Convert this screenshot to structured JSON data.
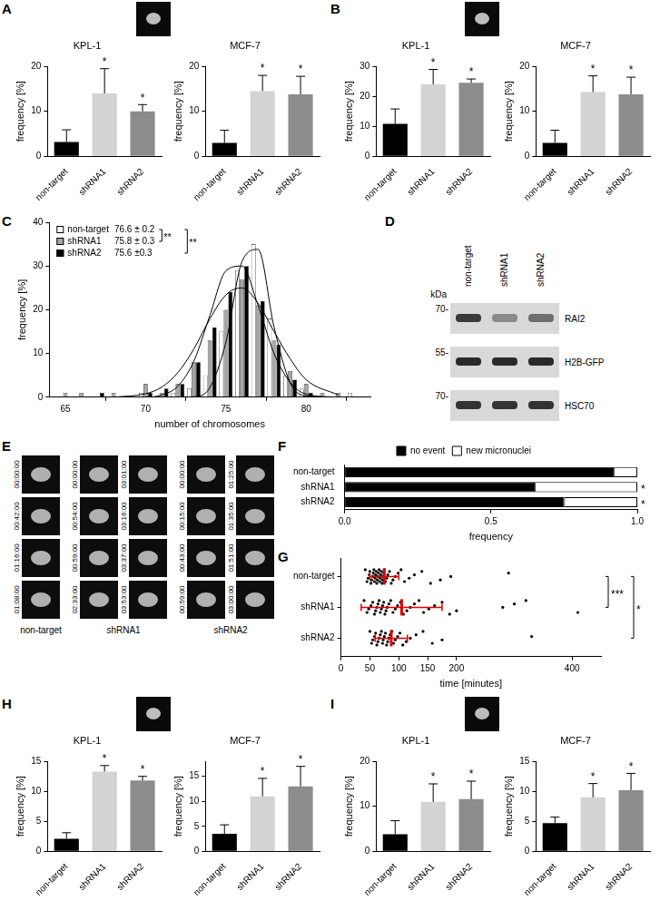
{
  "chart_data": [
    {
      "panel": "A",
      "type": "bar",
      "title": "KPL-1",
      "y_label": "frequency [%]",
      "categories": [
        "non-target",
        "shRNA1",
        "shRNA2"
      ],
      "values": [
        3.2,
        14,
        10
      ],
      "errors": [
        2.7,
        5.5,
        1.5
      ],
      "annotations": [
        null,
        "*",
        "*"
      ],
      "colors": [
        "#000000",
        "#d3d3d3",
        "#8c8c8c"
      ],
      "ylim": [
        0,
        20
      ],
      "yticks": [
        0,
        10,
        20
      ]
    },
    {
      "panel": "A",
      "type": "bar",
      "title": "MCF-7",
      "y_label": "frequency [%]",
      "categories": [
        "non-target",
        "shRNA1",
        "shRNA2"
      ],
      "values": [
        3,
        14.5,
        13.8
      ],
      "errors": [
        2.8,
        3.5,
        4
      ],
      "annotations": [
        null,
        "*",
        "*"
      ],
      "colors": [
        "#000000",
        "#d3d3d3",
        "#8c8c8c"
      ],
      "ylim": [
        0,
        20
      ],
      "yticks": [
        0,
        10,
        20
      ]
    },
    {
      "panel": "B",
      "type": "bar",
      "title": "KPL-1",
      "y_label": "frequency [%]",
      "categories": [
        "non-target",
        "shRNA1",
        "shRNA2"
      ],
      "values": [
        10.8,
        24,
        24.5
      ],
      "errors": [
        5,
        5,
        1.3
      ],
      "annotations": [
        null,
        "*",
        "*"
      ],
      "colors": [
        "#000000",
        "#d3d3d3",
        "#8c8c8c"
      ],
      "ylim": [
        0,
        30
      ],
      "yticks": [
        0,
        10,
        20,
        30
      ]
    },
    {
      "panel": "B",
      "type": "bar",
      "title": "MCF-7",
      "y_label": "frequency [%]",
      "categories": [
        "non-target",
        "shRNA1",
        "shRNA2"
      ],
      "values": [
        3,
        14.3,
        13.8
      ],
      "errors": [
        2.8,
        3.6,
        3.8
      ],
      "annotations": [
        null,
        "*",
        "*"
      ],
      "colors": [
        "#000000",
        "#d3d3d3",
        "#8c8c8c"
      ],
      "ylim": [
        0,
        20
      ],
      "yticks": [
        0,
        10,
        20
      ]
    },
    {
      "panel": "C",
      "type": "bar",
      "x_label": "number of chromosomes",
      "y_label": "frequency [%]",
      "x": [
        65,
        66,
        67,
        68,
        69,
        70,
        71,
        72,
        73,
        74,
        75,
        76,
        77,
        78,
        79,
        80,
        81,
        82,
        83
      ],
      "fit_x": [
        68,
        70,
        71,
        72,
        73,
        74,
        75,
        76,
        77,
        78,
        79,
        80,
        82
      ],
      "series": [
        {
          "name": "non-target",
          "summary": "76.6 ± 0.2",
          "color": "#ffffff",
          "values": [
            0,
            0,
            0,
            0,
            0,
            1,
            0,
            1,
            2,
            5,
            15,
            29,
            35,
            18,
            5,
            2,
            0,
            0,
            1
          ],
          "fit_values": [
            0,
            0,
            0,
            0,
            0.1,
            2.2,
            12.6,
            31,
            33.8,
            16,
            3.3,
            0.3,
            0
          ]
        },
        {
          "name": "shRNA1",
          "summary": "75.8 ± 0.3",
          "color": "#a6a6a6",
          "values": [
            1,
            1,
            0,
            1,
            0,
            3,
            1,
            3,
            8,
            13,
            20,
            27,
            21,
            13,
            6,
            3,
            1,
            1,
            0
          ],
          "fit_values": [
            0,
            0.8,
            2.3,
            5.6,
            11,
            17.9,
            23.4,
            25,
            21.5,
            15,
            8.8,
            4,
            0.5
          ]
        },
        {
          "name": "shRNA2",
          "summary": "75.6 ±0.3",
          "color": "#000000",
          "values": [
            0,
            0,
            1,
            0,
            0,
            1,
            2,
            3,
            8,
            16,
            24,
            30,
            22,
            12,
            4,
            1,
            0,
            0,
            0
          ],
          "fit_values": [
            0,
            0,
            0.5,
            2.5,
            8.2,
            18.7,
            28.9,
            30,
            21,
            10,
            3.4,
            0.7,
            0
          ]
        }
      ],
      "xlim": [
        64,
        84
      ],
      "xticks": [
        65,
        70,
        75,
        80
      ],
      "ylim": [
        0,
        40
      ],
      "yticks": [
        0,
        10,
        20,
        30,
        40
      ],
      "legend": "upper left",
      "annotations": [
        {
          "text": "**",
          "from": "non-target",
          "to": "shRNA1"
        },
        {
          "text": "**",
          "from": "non-target",
          "to": "shRNA2"
        }
      ]
    },
    {
      "panel": "F",
      "type": "bar",
      "orientation": "horizontal",
      "stacked": true,
      "categories": [
        "non-target",
        "shRNA1",
        "shRNA2"
      ],
      "series": [
        {
          "name": "no event",
          "color": "#000000",
          "values": [
            0.92,
            0.65,
            0.75
          ]
        },
        {
          "name": "new micronuclei",
          "color": "#ffffff",
          "values": [
            0.08,
            0.35,
            0.25
          ]
        }
      ],
      "xlim": [
        0,
        1
      ],
      "xticks": [
        {
          "value": 0,
          "label": "0.0"
        },
        0.5,
        {
          "value": 1,
          "label": "1.0"
        }
      ],
      "x_label": "frequency",
      "legend": "top",
      "annotations": [
        null,
        "*",
        "*"
      ]
    },
    {
      "panel": "G",
      "type": "scatter",
      "categories": [
        "non-target",
        "shRNA1",
        "shRNA2"
      ],
      "color": "#000000",
      "values": [
        [
          42,
          45,
          47,
          49,
          50,
          52,
          53,
          55,
          56,
          57,
          58,
          59,
          60,
          61,
          62,
          63,
          64,
          65,
          66,
          67,
          68,
          69,
          70,
          71,
          72,
          73,
          74,
          75,
          77,
          79,
          81,
          84,
          87,
          90,
          94,
          99,
          104,
          110,
          118,
          127,
          140,
          155,
          172,
          190,
          290
        ],
        [
          40,
          45,
          48,
          52,
          55,
          58,
          60,
          62,
          64,
          66,
          68,
          70,
          72,
          74,
          76,
          78,
          80,
          83,
          86,
          90,
          94,
          98,
          103,
          108,
          114,
          120,
          127,
          135,
          143,
          152,
          162,
          175,
          188,
          200,
          280,
          300,
          320,
          410
        ],
        [
          50,
          53,
          55,
          58,
          60,
          62,
          64,
          66,
          68,
          70,
          72,
          73,
          75,
          77,
          79,
          81,
          83,
          85,
          88,
          91,
          94,
          98,
          102,
          107,
          113,
          120,
          130,
          142,
          158,
          175,
          330
        ]
      ],
      "mean": [
        75,
        105,
        87
      ],
      "sd": [
        25,
        70,
        28
      ],
      "xlim": [
        0,
        450
      ],
      "xticks": [
        0,
        50,
        100,
        150,
        200,
        400
      ],
      "x_label": "time [minutes]",
      "annotations": [
        {
          "text": "***",
          "from": "non-target",
          "to": "shRNA1"
        },
        {
          "text": "*",
          "from": "non-target",
          "to": "shRNA2"
        }
      ]
    },
    {
      "panel": "H",
      "type": "bar",
      "title": "KPL-1",
      "y_label": "frequency [%]",
      "categories": [
        "non-target",
        "shRNA1",
        "shRNA2"
      ],
      "values": [
        2.1,
        13.3,
        11.8
      ],
      "errors": [
        1,
        1,
        0.7
      ],
      "annotations": [
        null,
        "*",
        "*"
      ],
      "colors": [
        "#000000",
        "#d3d3d3",
        "#8c8c8c"
      ],
      "ylim": [
        0,
        15
      ],
      "yticks": [
        0,
        5,
        10,
        15
      ]
    },
    {
      "panel": "H",
      "type": "bar",
      "title": "MCF-7",
      "y_label": "frequency [%]",
      "categories": [
        "non-target",
        "shRNA1",
        "shRNA2"
      ],
      "values": [
        3.5,
        11,
        13
      ],
      "errors": [
        1.8,
        3.6,
        4
      ],
      "annotations": [
        null,
        "*",
        "*"
      ],
      "colors": [
        "#000000",
        "#d3d3d3",
        "#8c8c8c"
      ],
      "ylim": [
        0,
        18
      ],
      "yticks": [
        0,
        5,
        10,
        15
      ]
    },
    {
      "panel": "I",
      "type": "bar",
      "title": "KPL-1",
      "y_label": "frequency [%]",
      "categories": [
        "non-target",
        "shRNA1",
        "shRNA2"
      ],
      "values": [
        3.8,
        11,
        11.6
      ],
      "errors": [
        3,
        4,
        4
      ],
      "annotations": [
        null,
        "*",
        "*"
      ],
      "colors": [
        "#000000",
        "#d3d3d3",
        "#8c8c8c"
      ],
      "ylim": [
        0,
        20
      ],
      "yticks": [
        0,
        10,
        20
      ]
    },
    {
      "panel": "I",
      "type": "bar",
      "title": "MCF-7",
      "y_label": "frequency [%]",
      "categories": [
        "non-target",
        "shRNA1",
        "shRNA2"
      ],
      "values": [
        4.7,
        9,
        10.2
      ],
      "errors": [
        1,
        2.3,
        2.8
      ],
      "annotations": [
        null,
        "*",
        "*"
      ],
      "colors": [
        "#000000",
        "#d3d3d3",
        "#8c8c8c"
      ],
      "ylim": [
        0,
        15
      ],
      "yticks": [
        0,
        5,
        10,
        15
      ]
    }
  ],
  "blot": {
    "panel": "D",
    "unit": "kDa",
    "lanes": [
      "non-target",
      "shRNA1",
      "shRNA2"
    ],
    "rows": [
      {
        "label": "RAI2",
        "marker": "70-"
      },
      {
        "label": "H2B-GFP",
        "marker": "55-"
      },
      {
        "label": "HSC70",
        "marker": "70-"
      }
    ]
  },
  "timelapse": {
    "panel": "E",
    "groups": [
      {
        "label": "non-target",
        "columns": [
          [
            "00:00:00",
            "00:42:00",
            "01:16:00",
            "01:08:00"
          ]
        ]
      },
      {
        "label": "shRNA1",
        "columns": [
          [
            "00:00:00",
            "00:54:00",
            "00:59:00",
            "02:33:00"
          ],
          [
            "03:01:00",
            "03:16:00",
            "03:37:00",
            "03:53:00"
          ]
        ]
      },
      {
        "label": "shRNA2",
        "columns": [
          [
            "00:00:00",
            "00:15:00",
            "00:43:00",
            "00:59:00"
          ],
          [
            "01:25:00",
            "01:35:00",
            "01:51:00",
            "03:00:00"
          ]
        ]
      }
    ]
  }
}
